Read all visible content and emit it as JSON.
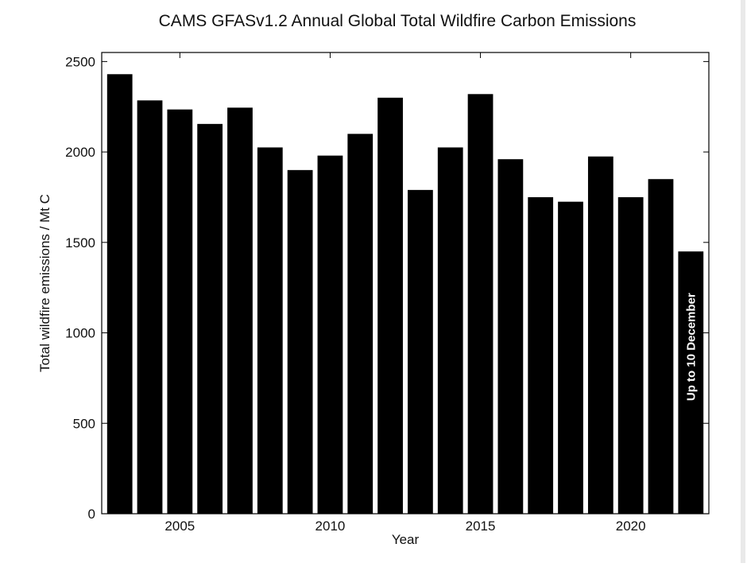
{
  "chart_data": {
    "type": "bar",
    "title": "CAMS GFASv1.2 Annual Global Total Wildfire Carbon Emissions",
    "xlabel": "Year",
    "ylabel": "Total wildfire emissions / Mt C",
    "x": [
      2003,
      2004,
      2005,
      2006,
      2007,
      2008,
      2009,
      2010,
      2011,
      2012,
      2013,
      2014,
      2015,
      2016,
      2017,
      2018,
      2019,
      2020,
      2021,
      2022
    ],
    "values": [
      2430,
      2285,
      2235,
      2155,
      2245,
      2025,
      1900,
      1980,
      2100,
      2300,
      1790,
      2025,
      2320,
      1960,
      1750,
      1725,
      1975,
      1750,
      1850,
      1450
    ],
    "x_ticks": [
      2005,
      2010,
      2015,
      2020
    ],
    "y_ticks": [
      0,
      500,
      1000,
      1500,
      2000,
      2500
    ],
    "xlim": [
      2002.4,
      2022.6
    ],
    "ylim": [
      0,
      2550
    ],
    "bar_color": "#000000",
    "grid": false,
    "annotation": {
      "year": 2022,
      "text": "Up to 10 December"
    }
  }
}
